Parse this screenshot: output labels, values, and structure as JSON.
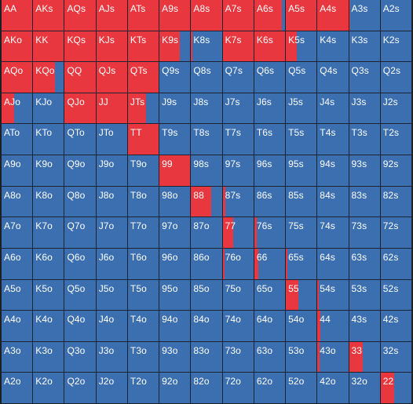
{
  "colors": {
    "raise": "#e8373e",
    "base": "#3b6fb0",
    "gridline": "#1c2230"
  },
  "hands": [
    [
      "AA",
      "AKs",
      "AQs",
      "AJs",
      "ATs",
      "A9s",
      "A8s",
      "A7s",
      "A6s",
      "A5s",
      "A4s",
      "A3s",
      "A2s"
    ],
    [
      "AKo",
      "KK",
      "KQs",
      "KJs",
      "KTs",
      "K9s",
      "K8s",
      "K7s",
      "K6s",
      "K5s",
      "K4s",
      "K3s",
      "K2s"
    ],
    [
      "AQo",
      "KQo",
      "QQ",
      "QJs",
      "QTs",
      "Q9s",
      "Q8s",
      "Q7s",
      "Q6s",
      "Q5s",
      "Q4s",
      "Q3s",
      "Q2s"
    ],
    [
      "AJo",
      "KJo",
      "QJo",
      "JJ",
      "JTs",
      "J9s",
      "J8s",
      "J7s",
      "J6s",
      "J5s",
      "J4s",
      "J3s",
      "J2s"
    ],
    [
      "ATo",
      "KTo",
      "QTo",
      "JTo",
      "TT",
      "T9s",
      "T8s",
      "T7s",
      "T6s",
      "T5s",
      "T4s",
      "T3s",
      "T2s"
    ],
    [
      "A9o",
      "K9o",
      "Q9o",
      "J9o",
      "T9o",
      "99",
      "98s",
      "97s",
      "96s",
      "95s",
      "94s",
      "93s",
      "92s"
    ],
    [
      "A8o",
      "K8o",
      "Q8o",
      "J8o",
      "T8o",
      "98o",
      "88",
      "87s",
      "86s",
      "85s",
      "84s",
      "83s",
      "82s"
    ],
    [
      "A7o",
      "K7o",
      "Q7o",
      "J7o",
      "T7o",
      "97o",
      "87o",
      "77",
      "76s",
      "75s",
      "74s",
      "73s",
      "72s"
    ],
    [
      "A6o",
      "K6o",
      "Q6o",
      "J6o",
      "T6o",
      "96o",
      "86o",
      "76o",
      "66",
      "65s",
      "64s",
      "63s",
      "62s"
    ],
    [
      "A5o",
      "K5o",
      "Q5o",
      "J5o",
      "T5o",
      "95o",
      "85o",
      "75o",
      "65o",
      "55",
      "54s",
      "53s",
      "52s"
    ],
    [
      "A4o",
      "K4o",
      "Q4o",
      "J4o",
      "T4o",
      "94o",
      "84o",
      "74o",
      "64o",
      "54o",
      "44",
      "43s",
      "42s"
    ],
    [
      "A3o",
      "K3o",
      "Q3o",
      "J3o",
      "T3o",
      "93o",
      "83o",
      "73o",
      "63o",
      "53o",
      "43o",
      "33",
      "32s"
    ],
    [
      "A2o",
      "K2o",
      "Q2o",
      "J2o",
      "T2o",
      "92o",
      "82o",
      "72o",
      "62o",
      "52o",
      "42o",
      "32o",
      "22"
    ]
  ],
  "raise_fraction": [
    [
      1,
      1,
      1,
      1,
      1,
      1,
      1,
      1,
      0.9,
      1,
      1,
      0.02,
      0
    ],
    [
      1,
      1,
      1,
      1,
      1,
      0.65,
      0.05,
      1,
      1,
      0.35,
      0,
      0,
      0
    ],
    [
      1,
      0.7,
      1,
      1,
      1,
      0,
      0,
      0,
      0,
      0,
      0,
      0,
      0
    ],
    [
      0.4,
      0,
      1,
      1,
      0.6,
      0,
      0,
      0,
      0,
      0,
      0,
      0,
      0
    ],
    [
      0,
      0,
      0,
      0,
      1,
      0,
      0,
      0,
      0,
      0,
      0,
      0,
      0
    ],
    [
      0,
      0,
      0,
      0,
      0,
      1,
      0,
      0,
      0,
      0,
      0,
      0,
      0
    ],
    [
      0,
      0,
      0,
      0,
      0,
      0,
      0.65,
      0.08,
      0,
      0,
      0,
      0,
      0
    ],
    [
      0,
      0,
      0,
      0,
      0,
      0,
      0,
      0.35,
      0.08,
      0,
      0,
      0,
      0
    ],
    [
      0,
      0,
      0,
      0,
      0,
      0,
      0,
      0.07,
      0.12,
      0.06,
      0,
      0,
      0
    ],
    [
      0,
      0,
      0,
      0,
      0,
      0,
      0,
      0,
      0,
      0.4,
      0.05,
      0,
      0
    ],
    [
      0,
      0,
      0,
      0,
      0,
      0,
      0,
      0,
      0,
      0,
      0.1,
      0,
      0
    ],
    [
      0,
      0,
      0,
      0,
      0,
      0,
      0,
      0,
      0,
      0,
      0.07,
      0.45,
      0
    ],
    [
      0,
      0,
      0,
      0,
      0,
      0,
      0,
      0,
      0,
      0,
      0,
      0,
      0.45
    ]
  ]
}
